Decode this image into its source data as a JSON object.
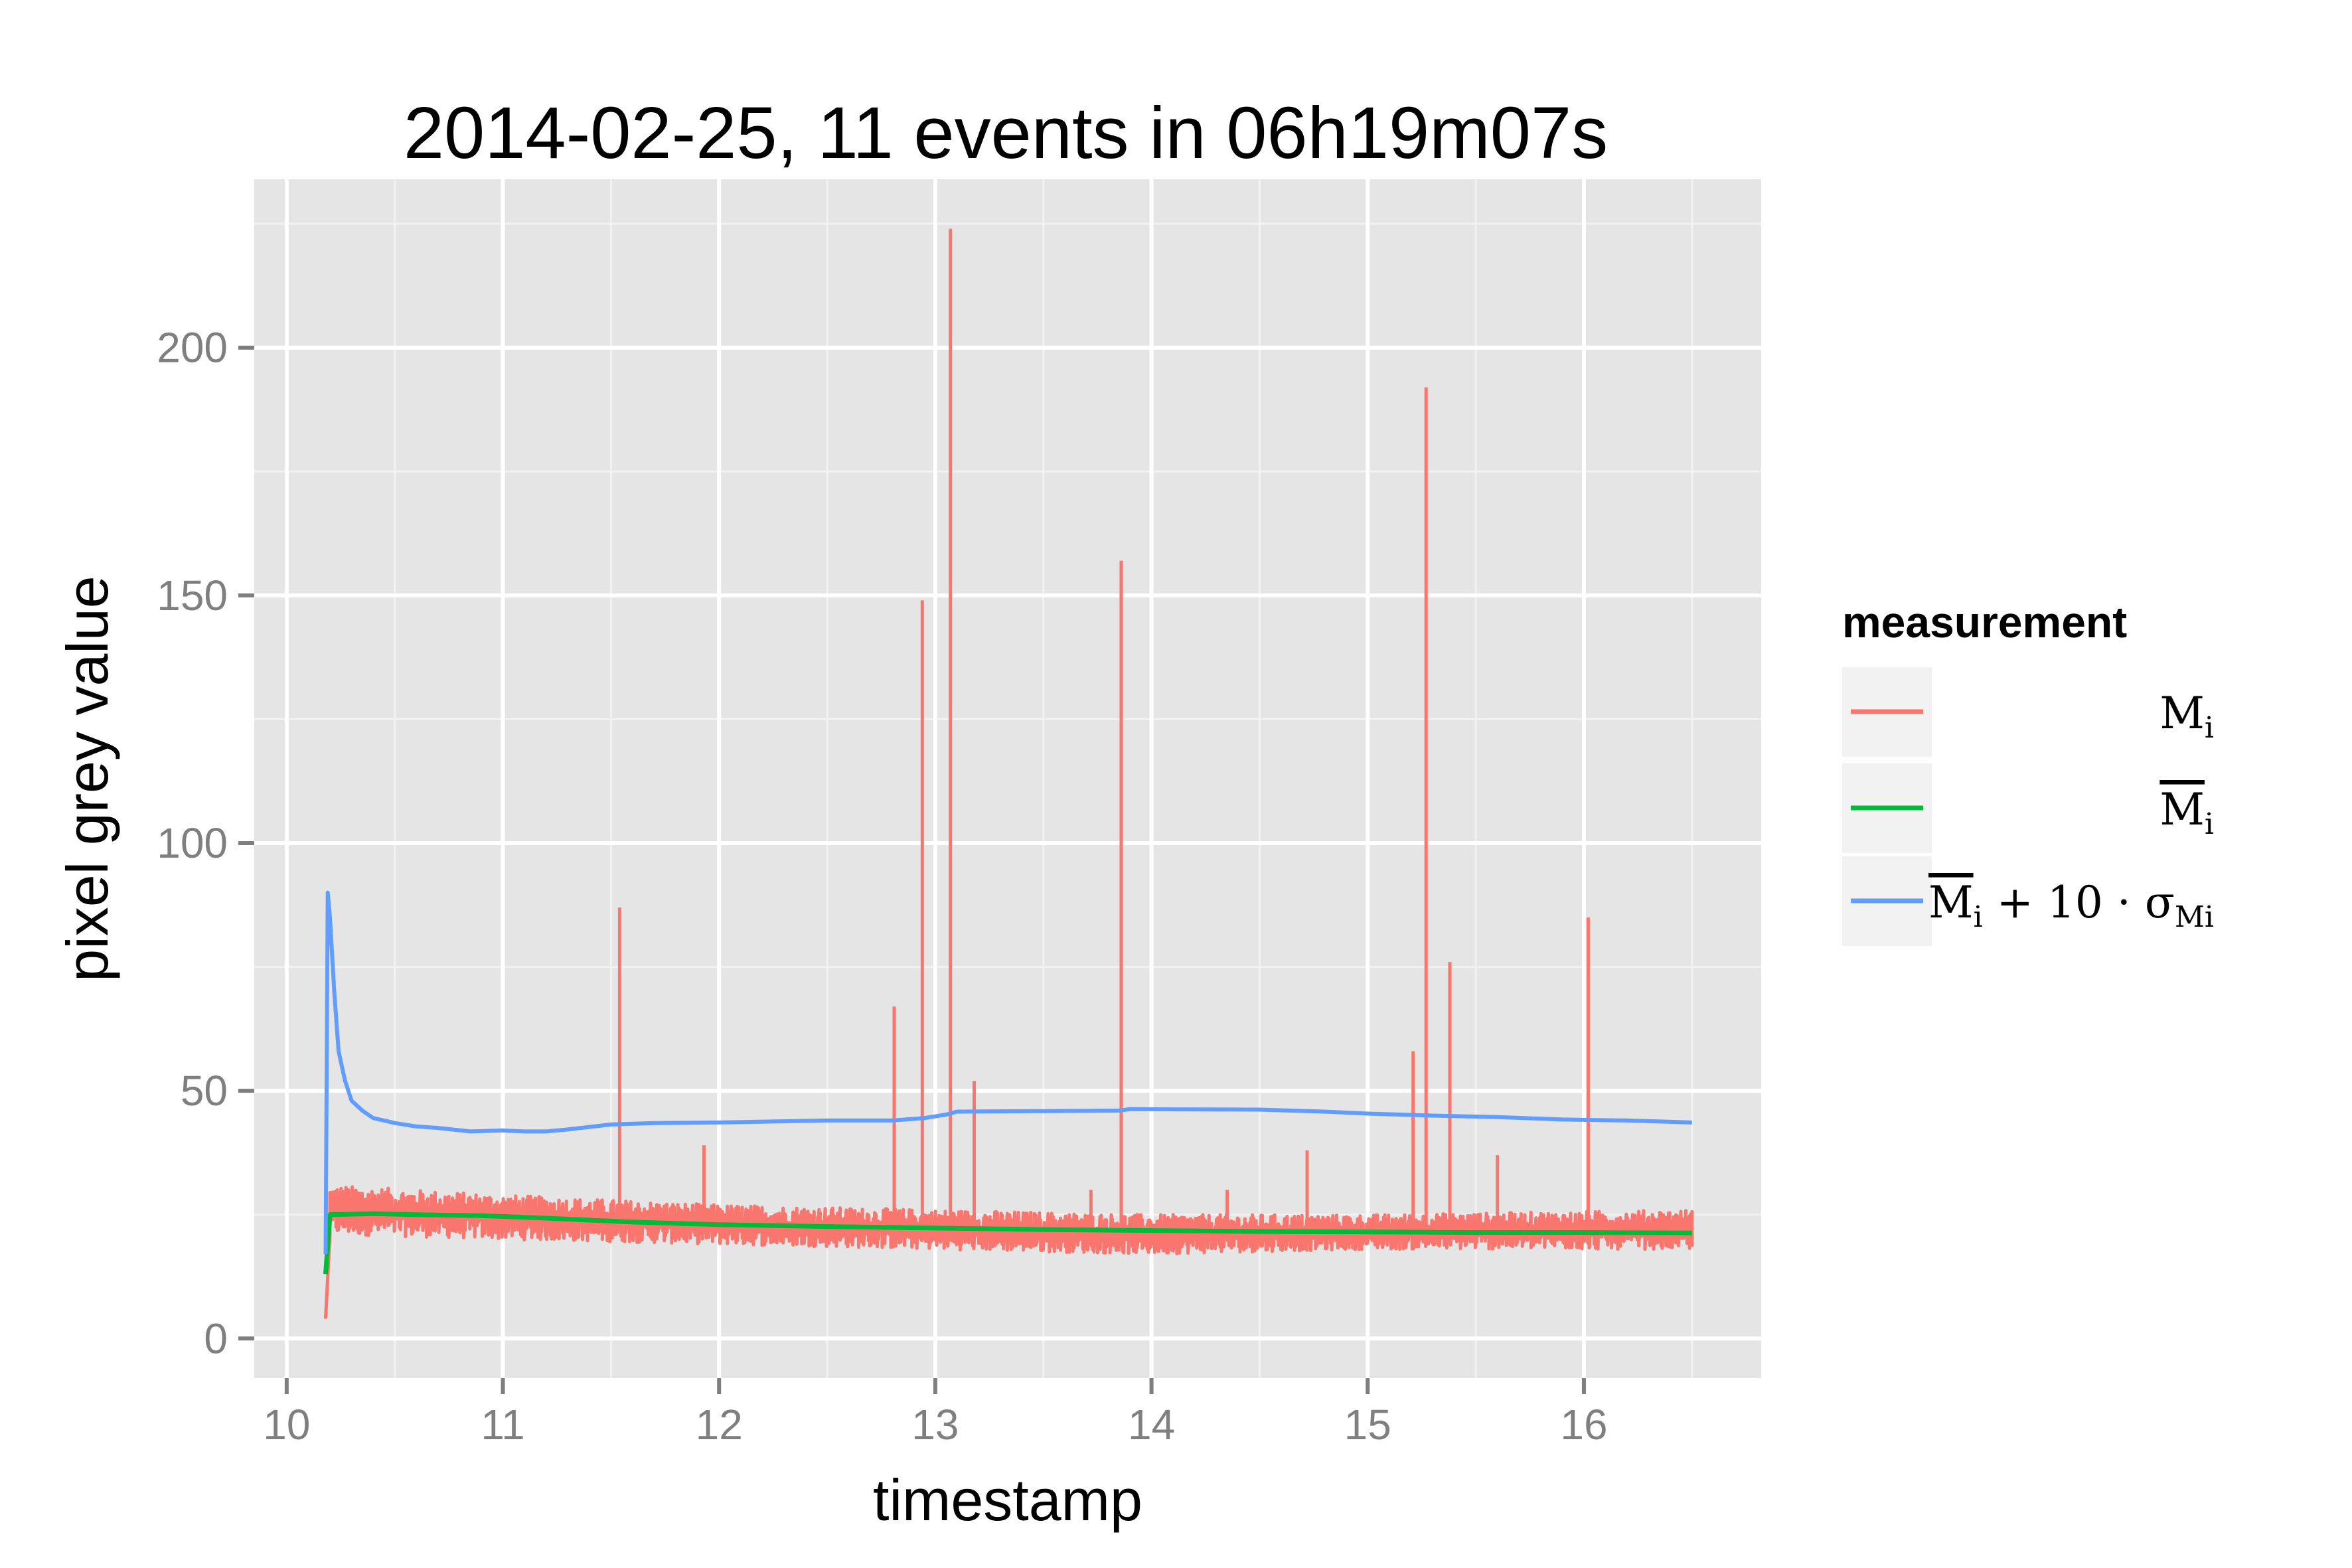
{
  "chart_data": {
    "type": "line",
    "title": "2014-02-25, 11 events in 06h19m07s",
    "xlabel": "timestamp",
    "ylabel": "pixel grey value",
    "xlim": [
      9.85,
      16.82
    ],
    "ylim": [
      -8,
      234
    ],
    "x_ticks": [
      10,
      11,
      12,
      13,
      14,
      15,
      16
    ],
    "y_ticks": [
      0,
      50,
      100,
      150,
      200
    ],
    "grid": true,
    "legend": {
      "title": "measurement",
      "placement": "right",
      "entries": [
        {
          "base": "M",
          "sub": "i",
          "overline": false,
          "suffix": "",
          "suffix_sub": ""
        },
        {
          "base": "M",
          "sub": "i",
          "overline": true,
          "suffix": "",
          "suffix_sub": ""
        },
        {
          "base": "M",
          "sub": "i",
          "overline": true,
          "suffix": " + 10 · σ",
          "suffix_sub": "Mi"
        }
      ]
    },
    "series": [
      {
        "color": "#F8766D",
        "noise_band": {
          "x_start": 10.2,
          "x_end": 16.5,
          "band_high": [
            [
              10.2,
              31
            ],
            [
              11.0,
              29
            ],
            [
              12.0,
              27
            ],
            [
              13.0,
              26
            ],
            [
              14.0,
              25
            ],
            [
              15.0,
              25
            ],
            [
              16.5,
              26
            ]
          ],
          "band_low": [
            [
              10.2,
              21
            ],
            [
              11.0,
              20
            ],
            [
              12.0,
              19
            ],
            [
              13.0,
              18
            ],
            [
              14.0,
              17
            ],
            [
              15.0,
              18
            ],
            [
              16.5,
              18
            ]
          ]
        },
        "initial_dip": {
          "x": 10.18,
          "y": 4
        },
        "spikes": [
          {
            "x": 11.54,
            "y": 87
          },
          {
            "x": 11.93,
            "y": 39
          },
          {
            "x": 12.81,
            "y": 67
          },
          {
            "x": 12.94,
            "y": 149
          },
          {
            "x": 13.07,
            "y": 224
          },
          {
            "x": 13.18,
            "y": 52
          },
          {
            "x": 13.72,
            "y": 30
          },
          {
            "x": 13.86,
            "y": 157
          },
          {
            "x": 14.35,
            "y": 30
          },
          {
            "x": 14.72,
            "y": 38
          },
          {
            "x": 15.21,
            "y": 58
          },
          {
            "x": 15.27,
            "y": 192
          },
          {
            "x": 15.38,
            "y": 76
          },
          {
            "x": 15.6,
            "y": 37
          },
          {
            "x": 16.02,
            "y": 85
          }
        ]
      },
      {
        "color": "#00BA38",
        "points": [
          [
            10.18,
            13
          ],
          [
            10.2,
            25
          ],
          [
            10.4,
            25.2
          ],
          [
            10.6,
            25
          ],
          [
            10.9,
            24.8
          ],
          [
            11.2,
            24.3
          ],
          [
            11.6,
            23.5
          ],
          [
            12.0,
            23
          ],
          [
            12.5,
            22.6
          ],
          [
            13.0,
            22.3
          ],
          [
            13.5,
            22
          ],
          [
            14.0,
            21.8
          ],
          [
            14.5,
            21.6
          ],
          [
            15.0,
            21.5
          ],
          [
            15.5,
            21.4
          ],
          [
            16.0,
            21.4
          ],
          [
            16.5,
            21.3
          ]
        ]
      },
      {
        "color": "#619CFF",
        "points": [
          [
            10.18,
            17
          ],
          [
            10.19,
            90
          ],
          [
            10.2,
            85
          ],
          [
            10.22,
            70
          ],
          [
            10.24,
            58
          ],
          [
            10.27,
            52
          ],
          [
            10.3,
            48
          ],
          [
            10.35,
            46
          ],
          [
            10.4,
            44.5
          ],
          [
            10.5,
            43.5
          ],
          [
            10.6,
            42.8
          ],
          [
            10.7,
            42.5
          ],
          [
            10.85,
            41.8
          ],
          [
            11.0,
            42
          ],
          [
            11.1,
            41.8
          ],
          [
            11.2,
            41.8
          ],
          [
            11.3,
            42.2
          ],
          [
            11.5,
            43.2
          ],
          [
            11.7,
            43.5
          ],
          [
            12.0,
            43.6
          ],
          [
            12.5,
            44
          ],
          [
            12.8,
            44
          ],
          [
            12.95,
            44.5
          ],
          [
            13.05,
            45.2
          ],
          [
            13.1,
            45.8
          ],
          [
            13.5,
            45.9
          ],
          [
            13.85,
            46
          ],
          [
            13.9,
            46.3
          ],
          [
            14.5,
            46.2
          ],
          [
            14.8,
            45.8
          ],
          [
            15.0,
            45.4
          ],
          [
            15.3,
            45
          ],
          [
            15.6,
            44.7
          ],
          [
            15.9,
            44.2
          ],
          [
            16.2,
            44
          ],
          [
            16.5,
            43.6
          ]
        ]
      }
    ]
  }
}
